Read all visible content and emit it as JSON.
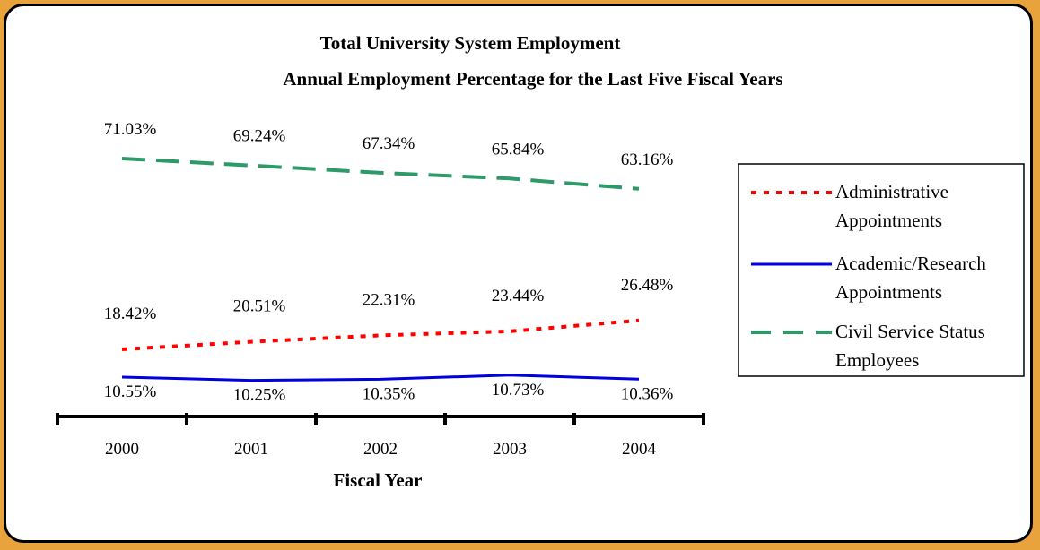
{
  "chart_data": {
    "type": "line",
    "title": "Total University System Employment",
    "subtitle": "Annual Employment Percentage for the Last Five Fiscal Years",
    "xlabel": "Fiscal Year",
    "ylabel": "",
    "categories": [
      "2000",
      "2001",
      "2002",
      "2003",
      "2004"
    ],
    "grid": false,
    "legend_position": "right",
    "series": [
      {
        "name_lines": [
          "Administrative",
          "Appointments"
        ],
        "values": [
          18.42,
          20.51,
          22.31,
          23.44,
          26.48
        ],
        "labels": [
          "18.42%",
          "20.51%",
          "22.31%",
          "23.44%",
          "26.48%"
        ],
        "color": "#ff0000",
        "style": "dotted"
      },
      {
        "name_lines": [
          "Academic/Research",
          "Appointments"
        ],
        "values": [
          10.55,
          10.25,
          10.35,
          10.73,
          10.36
        ],
        "labels": [
          "10.55%",
          "10.25%",
          "10.35%",
          "10.73%",
          "10.36%"
        ],
        "color": "#0000e0",
        "style": "solid"
      },
      {
        "name_lines": [
          "Civil Service Status",
          "Employees"
        ],
        "values": [
          71.03,
          69.24,
          67.34,
          65.84,
          63.16
        ],
        "labels": [
          "71.03%",
          "69.24%",
          "67.34%",
          "65.84%",
          "63.16%"
        ],
        "color": "#2e9a6a",
        "style": "dashed"
      }
    ]
  }
}
